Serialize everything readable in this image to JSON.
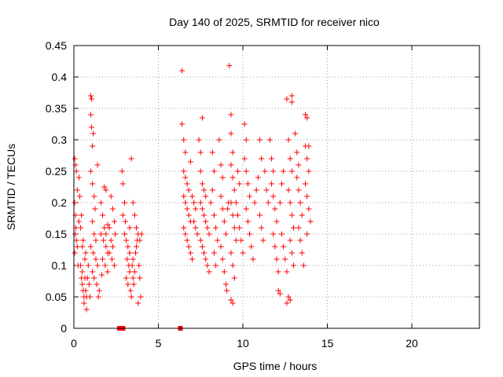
{
  "chart_data": {
    "type": "scatter",
    "title": "Day 140 of 2025, SRMTID for receiver nico",
    "xlabel": "GPS time / hours",
    "ylabel": "SRMTID / TECUs",
    "xlim": [
      0,
      24
    ],
    "ylim": [
      0,
      0.45
    ],
    "x_ticks": [
      0,
      5,
      10,
      15,
      20
    ],
    "x_tick_labels": [
      "0",
      "5",
      "10",
      "15",
      "20"
    ],
    "y_ticks": [
      0,
      0.05,
      0.1,
      0.15,
      0.2,
      0.25,
      0.3,
      0.35,
      0.4,
      0.45
    ],
    "y_tick_labels": [
      "0",
      "0.05",
      "0.1",
      "0.15",
      "0.2",
      "0.25",
      "0.3",
      "0.35",
      "0.4",
      "0.45"
    ],
    "grid": true,
    "marker": "plus",
    "color": "#ff0000",
    "series": [
      {
        "marker": "plus",
        "points": [
          [
            0.05,
            0.27
          ],
          [
            0.1,
            0.26
          ],
          [
            0.15,
            0.25
          ],
          [
            0.2,
            0.22
          ],
          [
            0.05,
            0.2
          ],
          [
            0.1,
            0.18
          ],
          [
            0.12,
            0.16
          ],
          [
            0.08,
            0.15
          ],
          [
            0.15,
            0.14
          ],
          [
            0.2,
            0.13
          ],
          [
            0.05,
            0.12
          ],
          [
            0.25,
            0.1
          ],
          [
            0.3,
            0.24
          ],
          [
            0.35,
            0.21
          ],
          [
            0.3,
            0.17
          ],
          [
            0.4,
            0.1
          ],
          [
            0.45,
            0.08
          ],
          [
            0.5,
            0.07
          ],
          [
            0.55,
            0.06
          ],
          [
            0.6,
            0.05
          ],
          [
            0.5,
            0.09
          ],
          [
            0.65,
            0.08
          ],
          [
            0.7,
            0.06
          ],
          [
            0.75,
            0.05
          ],
          [
            0.6,
            0.04
          ],
          [
            0.8,
            0.08
          ],
          [
            0.85,
            0.1
          ],
          [
            0.7,
            0.12
          ],
          [
            0.5,
            0.13
          ],
          [
            0.55,
            0.14
          ],
          [
            0.9,
            0.07
          ],
          [
            0.95,
            0.05
          ],
          [
            0.65,
            0.11
          ],
          [
            0.4,
            0.16
          ],
          [
            0.45,
            0.18
          ],
          [
            0.75,
            0.03
          ],
          [
            1.0,
            0.37
          ],
          [
            1.05,
            0.365
          ],
          [
            1.0,
            0.34
          ],
          [
            1.05,
            0.32
          ],
          [
            1.15,
            0.31
          ],
          [
            1.1,
            0.29
          ],
          [
            1.0,
            0.25
          ],
          [
            1.1,
            0.23
          ],
          [
            1.2,
            0.21
          ],
          [
            1.25,
            0.19
          ],
          [
            1.1,
            0.17
          ],
          [
            1.2,
            0.15
          ],
          [
            1.3,
            0.14
          ],
          [
            1.0,
            0.13
          ],
          [
            1.15,
            0.12
          ],
          [
            1.3,
            0.11
          ],
          [
            1.4,
            0.1
          ],
          [
            1.1,
            0.09
          ],
          [
            1.2,
            0.08
          ],
          [
            1.35,
            0.07
          ],
          [
            1.5,
            0.06
          ],
          [
            1.45,
            0.05
          ],
          [
            1.4,
            0.26
          ],
          [
            1.6,
            0.2
          ],
          [
            1.7,
            0.18
          ],
          [
            1.8,
            0.16
          ],
          [
            1.6,
            0.15
          ],
          [
            1.75,
            0.14
          ],
          [
            1.9,
            0.13
          ],
          [
            2.0,
            0.12
          ],
          [
            1.7,
            0.11
          ],
          [
            1.85,
            0.1
          ],
          [
            2.0,
            0.09
          ],
          [
            1.9,
            0.15
          ],
          [
            2.1,
            0.16
          ],
          [
            2.2,
            0.14
          ],
          [
            2.3,
            0.13
          ],
          [
            2.1,
            0.12
          ],
          [
            2.25,
            0.11
          ],
          [
            2.4,
            0.1
          ],
          [
            1.8,
            0.225
          ],
          [
            1.9,
            0.22
          ],
          [
            2.2,
            0.21
          ],
          [
            2.3,
            0.19
          ],
          [
            2.4,
            0.17
          ],
          [
            2.45,
            0.15
          ],
          [
            2.0,
            0.165
          ],
          [
            1.65,
            0.085
          ],
          [
            2.85,
            0.25
          ],
          [
            2.9,
            0.23
          ],
          [
            3.0,
            0.2
          ],
          [
            2.9,
            0.18
          ],
          [
            3.05,
            0.17
          ],
          [
            3.0,
            0.15
          ],
          [
            3.1,
            0.14
          ],
          [
            3.2,
            0.13
          ],
          [
            3.15,
            0.11
          ],
          [
            3.25,
            0.1
          ],
          [
            3.3,
            0.09
          ],
          [
            3.1,
            0.08
          ],
          [
            3.2,
            0.07
          ],
          [
            3.35,
            0.06
          ],
          [
            3.4,
            0.05
          ],
          [
            3.3,
            0.12
          ],
          [
            3.45,
            0.1
          ],
          [
            3.5,
            0.08
          ],
          [
            3.55,
            0.07
          ],
          [
            3.6,
            0.09
          ],
          [
            3.5,
            0.11
          ],
          [
            3.65,
            0.12
          ],
          [
            3.7,
            0.13
          ],
          [
            3.75,
            0.14
          ],
          [
            3.8,
            0.15
          ],
          [
            3.85,
            0.1
          ],
          [
            3.9,
            0.08
          ],
          [
            3.95,
            0.05
          ],
          [
            3.8,
            0.04
          ],
          [
            3.4,
            0.27
          ],
          [
            3.5,
            0.2
          ],
          [
            3.6,
            0.18
          ],
          [
            3.7,
            0.16
          ],
          [
            3.9,
            0.14
          ],
          [
            4.0,
            0.15
          ],
          [
            3.3,
            0.16
          ],
          [
            6.4,
            0.41
          ],
          [
            6.4,
            0.325
          ],
          [
            6.5,
            0.3
          ],
          [
            6.6,
            0.28
          ],
          [
            6.5,
            0.25
          ],
          [
            6.6,
            0.24
          ],
          [
            6.7,
            0.23
          ],
          [
            6.8,
            0.22
          ],
          [
            6.5,
            0.21
          ],
          [
            6.6,
            0.2
          ],
          [
            6.7,
            0.19
          ],
          [
            6.8,
            0.18
          ],
          [
            6.9,
            0.17
          ],
          [
            6.5,
            0.16
          ],
          [
            6.6,
            0.15
          ],
          [
            6.7,
            0.14
          ],
          [
            6.8,
            0.13
          ],
          [
            6.9,
            0.12
          ],
          [
            7.0,
            0.11
          ],
          [
            7.0,
            0.21
          ],
          [
            7.1,
            0.2
          ],
          [
            7.2,
            0.19
          ],
          [
            7.1,
            0.17
          ],
          [
            7.2,
            0.16
          ],
          [
            7.3,
            0.15
          ],
          [
            6.9,
            0.265
          ],
          [
            7.4,
            0.3
          ],
          [
            7.5,
            0.28
          ],
          [
            7.6,
            0.335
          ],
          [
            7.5,
            0.25
          ],
          [
            7.6,
            0.23
          ],
          [
            7.7,
            0.22
          ],
          [
            7.8,
            0.21
          ],
          [
            7.5,
            0.2
          ],
          [
            7.6,
            0.19
          ],
          [
            7.7,
            0.18
          ],
          [
            7.8,
            0.17
          ],
          [
            7.9,
            0.16
          ],
          [
            8.0,
            0.15
          ],
          [
            7.5,
            0.14
          ],
          [
            7.6,
            0.13
          ],
          [
            7.7,
            0.12
          ],
          [
            7.8,
            0.11
          ],
          [
            7.9,
            0.1
          ],
          [
            8.0,
            0.09
          ],
          [
            8.1,
            0.2
          ],
          [
            8.2,
            0.22
          ],
          [
            8.3,
            0.25
          ],
          [
            8.2,
            0.28
          ],
          [
            8.3,
            0.18
          ],
          [
            8.4,
            0.16
          ],
          [
            8.5,
            0.14
          ],
          [
            8.3,
            0.12
          ],
          [
            8.4,
            0.1
          ],
          [
            8.6,
            0.3
          ],
          [
            8.7,
            0.26
          ],
          [
            8.8,
            0.24
          ],
          [
            8.7,
            0.21
          ],
          [
            8.8,
            0.19
          ],
          [
            8.9,
            0.17
          ],
          [
            9.0,
            0.15
          ],
          [
            8.7,
            0.13
          ],
          [
            8.8,
            0.11
          ],
          [
            8.9,
            0.09
          ],
          [
            9.0,
            0.07
          ],
          [
            9.05,
            0.06
          ],
          [
            9.1,
            0.19
          ],
          [
            9.15,
            0.2
          ],
          [
            9.2,
            0.418
          ],
          [
            9.3,
            0.34
          ],
          [
            9.3,
            0.31
          ],
          [
            9.4,
            0.28
          ],
          [
            9.3,
            0.26
          ],
          [
            9.4,
            0.24
          ],
          [
            9.5,
            0.22
          ],
          [
            9.3,
            0.2
          ],
          [
            9.4,
            0.18
          ],
          [
            9.5,
            0.16
          ],
          [
            9.6,
            0.14
          ],
          [
            9.3,
            0.12
          ],
          [
            9.4,
            0.1
          ],
          [
            9.5,
            0.08
          ],
          [
            9.3,
            0.045
          ],
          [
            9.4,
            0.04
          ],
          [
            9.6,
            0.2
          ],
          [
            9.7,
            0.18
          ],
          [
            9.8,
            0.16
          ],
          [
            9.9,
            0.14
          ],
          [
            10.0,
            0.12
          ],
          [
            9.7,
            0.25
          ],
          [
            9.8,
            0.23
          ],
          [
            10.1,
            0.325
          ],
          [
            10.2,
            0.3
          ],
          [
            10.1,
            0.27
          ],
          [
            10.2,
            0.25
          ],
          [
            10.3,
            0.23
          ],
          [
            10.4,
            0.21
          ],
          [
            10.2,
            0.19
          ],
          [
            10.3,
            0.17
          ],
          [
            10.4,
            0.15
          ],
          [
            10.5,
            0.13
          ],
          [
            10.6,
            0.11
          ],
          [
            10.7,
            0.2
          ],
          [
            10.8,
            0.22
          ],
          [
            10.9,
            0.24
          ],
          [
            11.0,
            0.18
          ],
          [
            11.1,
            0.16
          ],
          [
            11.2,
            0.14
          ],
          [
            11.0,
            0.3
          ],
          [
            11.1,
            0.27
          ],
          [
            11.3,
            0.25
          ],
          [
            11.4,
            0.22
          ],
          [
            11.5,
            0.2
          ],
          [
            11.6,
            0.3
          ],
          [
            11.7,
            0.27
          ],
          [
            11.8,
            0.25
          ],
          [
            11.7,
            0.23
          ],
          [
            11.8,
            0.21
          ],
          [
            11.9,
            0.19
          ],
          [
            12.0,
            0.17
          ],
          [
            11.8,
            0.15
          ],
          [
            11.9,
            0.13
          ],
          [
            12.0,
            0.11
          ],
          [
            12.1,
            0.09
          ],
          [
            12.2,
            0.2
          ],
          [
            12.3,
            0.23
          ],
          [
            12.4,
            0.25
          ],
          [
            12.3,
            0.15
          ],
          [
            12.4,
            0.13
          ],
          [
            12.5,
            0.11
          ],
          [
            12.6,
            0.09
          ],
          [
            12.1,
            0.06
          ],
          [
            12.2,
            0.055
          ],
          [
            12.6,
            0.365
          ],
          [
            12.9,
            0.37
          ],
          [
            12.9,
            0.36
          ],
          [
            12.7,
            0.3
          ],
          [
            12.8,
            0.27
          ],
          [
            12.9,
            0.25
          ],
          [
            12.7,
            0.22
          ],
          [
            12.8,
            0.2
          ],
          [
            12.9,
            0.18
          ],
          [
            13.0,
            0.16
          ],
          [
            12.8,
            0.14
          ],
          [
            12.9,
            0.12
          ],
          [
            13.0,
            0.1
          ],
          [
            12.7,
            0.05
          ],
          [
            12.8,
            0.045
          ],
          [
            12.6,
            0.04
          ],
          [
            13.1,
            0.31
          ],
          [
            13.2,
            0.28
          ],
          [
            13.3,
            0.26
          ],
          [
            13.2,
            0.24
          ],
          [
            13.3,
            0.22
          ],
          [
            13.4,
            0.2
          ],
          [
            13.5,
            0.18
          ],
          [
            13.3,
            0.16
          ],
          [
            13.4,
            0.14
          ],
          [
            13.5,
            0.12
          ],
          [
            13.6,
            0.1
          ],
          [
            13.7,
            0.34
          ],
          [
            13.8,
            0.335
          ],
          [
            13.7,
            0.29
          ],
          [
            13.8,
            0.27
          ],
          [
            13.9,
            0.25
          ],
          [
            13.7,
            0.23
          ],
          [
            13.8,
            0.21
          ],
          [
            13.9,
            0.19
          ],
          [
            14.0,
            0.17
          ],
          [
            13.8,
            0.15
          ],
          [
            13.9,
            0.29
          ]
        ]
      },
      {
        "marker": "square",
        "points": [
          [
            2.7,
            0.0
          ],
          [
            2.8,
            0.0
          ],
          [
            2.9,
            0.0
          ],
          [
            6.3,
            0.0
          ]
        ]
      }
    ]
  }
}
